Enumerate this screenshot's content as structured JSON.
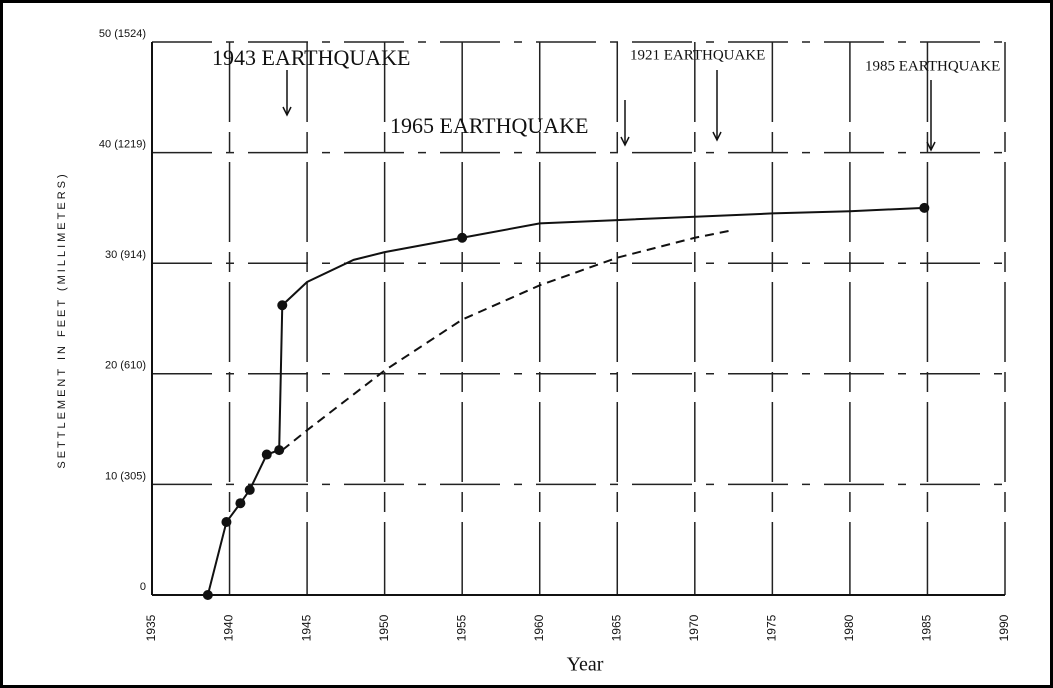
{
  "chart_data": {
    "type": "line",
    "xlabel": "Year",
    "ylabel": "SETTLEMENT IN FEET (MILLIMETERS)",
    "xlim": [
      1935,
      1990
    ],
    "xticks": [
      1935,
      1940,
      1945,
      1950,
      1955,
      1960,
      1965,
      1970,
      1975,
      1980,
      1985,
      1990
    ],
    "ylim": [
      0,
      50
    ],
    "yticks": [
      0,
      {
        "value": 10,
        "label": "10 (305)"
      },
      {
        "value": 20,
        "label": "20 (610)"
      },
      {
        "value": 30,
        "label": "30 (914)"
      },
      {
        "value": 40,
        "label": "40 (1219)"
      },
      {
        "value": 50,
        "label": "50 (1524)"
      }
    ],
    "grid": true,
    "series": [
      {
        "color": "#111111",
        "dash": false,
        "markers": false,
        "x": [
          1938.6,
          1939.8,
          1940.7,
          1941.3,
          1942.4,
          1943.2,
          1943.4,
          1945,
          1948,
          1950,
          1955,
          1960,
          1965,
          1970,
          1975,
          1980,
          1984.8
        ],
        "values": [
          0,
          6.6,
          8.3,
          9.5,
          12.7,
          13.1,
          26.2,
          28.3,
          30.3,
          31.0,
          32.3,
          33.6,
          33.9,
          34.2,
          34.5,
          34.7,
          35
        ]
      },
      {
        "color": "#111111",
        "dash": false,
        "markers": true,
        "x": [
          1938.6,
          1939.8,
          1940.7,
          1941.3,
          1942.4,
          1943.2,
          1943.4,
          1955,
          1984.8
        ],
        "values": [
          0,
          6.6,
          8.3,
          9.5,
          12.7,
          13.1,
          26.2,
          32.3,
          35
        ]
      },
      {
        "color": "#111111",
        "dash": true,
        "markers": false,
        "x": [
          1943.4,
          1945,
          1950,
          1955,
          1960,
          1965,
          1970,
          1972.5
        ],
        "values": [
          13.1,
          14.9,
          20.3,
          24.9,
          28,
          30.5,
          32.3,
          33
        ]
      }
    ],
    "annotations": [
      "1943 EARTHQUAKE",
      "1965 EARTHQUAKE",
      "1921 EARTHQUAKE",
      "1985 EARTHQUAKE"
    ]
  }
}
